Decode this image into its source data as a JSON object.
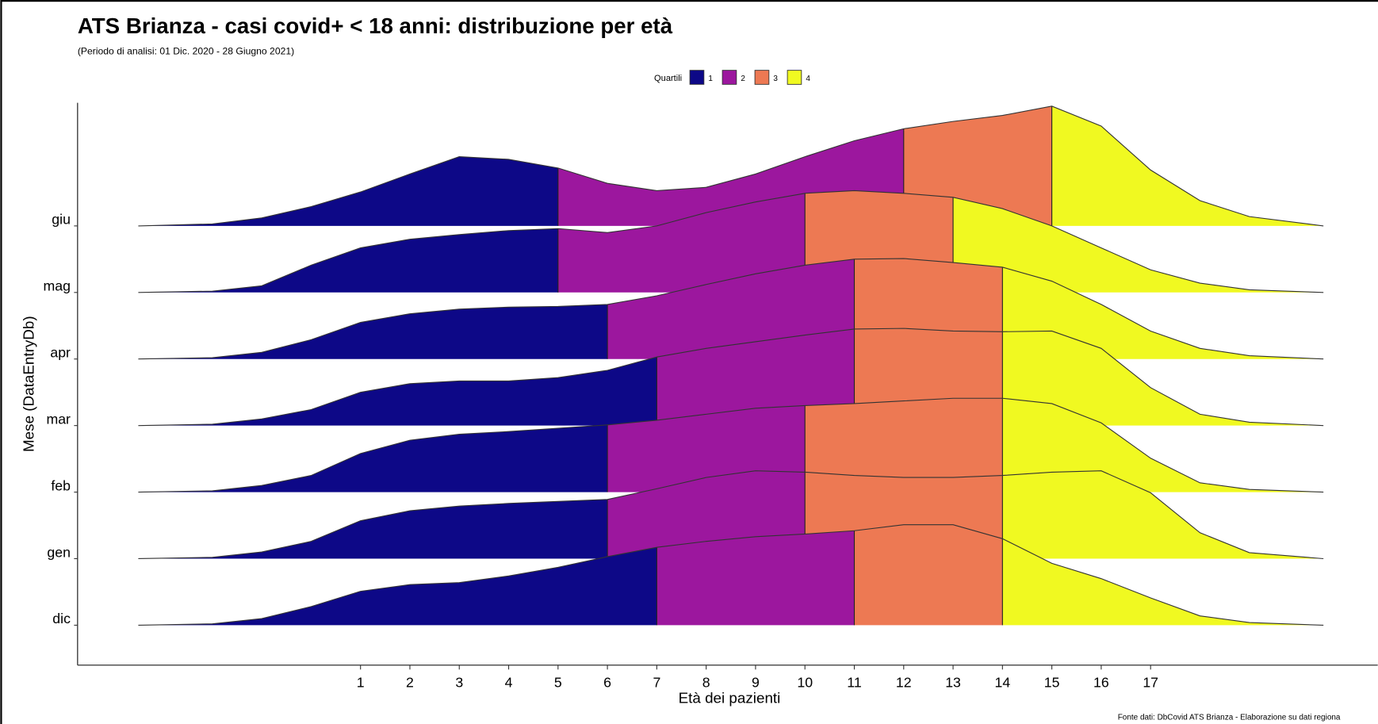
{
  "chart_data": {
    "type": "ridgeline",
    "title": "ATS Brianza - casi covid+ < 18 anni: distribuzione per età",
    "subtitle": "(Periodo di analisi: 01 Dic. 2020 - 28 Giugno 2021)",
    "x_label": "Età dei pazienti",
    "y_label": "Mese (DataEntryDb)",
    "source": "Fonte dati: DbCovid ATS Brianza - Elaborazione su dati regiona",
    "legend": {
      "title": "Quartili",
      "labels": [
        "1",
        "2",
        "3",
        "4"
      ],
      "colors": [
        "#0d0887",
        "#9c179e",
        "#ed7953",
        "#f0f921"
      ]
    },
    "xlim": [
      -4.73,
      21.6
    ],
    "xticks": [
      1,
      2,
      3,
      4,
      5,
      6,
      7,
      8,
      9,
      10,
      11,
      12,
      13,
      14,
      15,
      16,
      17
    ],
    "ylim": [
      -0.6,
      7.85
    ],
    "x": [
      -3.5,
      -2,
      -1,
      0,
      1,
      2,
      3,
      4,
      5,
      6,
      7,
      8,
      9,
      10,
      11,
      12,
      13,
      14,
      15,
      16,
      17,
      18,
      19,
      20.5
    ],
    "series": [
      {
        "name": "dic",
        "quartiles": [
          7,
          11,
          14
        ],
        "values": [
          0,
          0.02,
          0.1,
          0.28,
          0.51,
          0.61,
          0.64,
          0.74,
          0.87,
          1.03,
          1.17,
          1.26,
          1.33,
          1.37,
          1.42,
          1.51,
          1.51,
          1.3,
          0.93,
          0.7,
          0.41,
          0.14,
          0.04,
          0
        ]
      },
      {
        "name": "gen",
        "quartiles": [
          6,
          10,
          14
        ],
        "values": [
          0,
          0.02,
          0.1,
          0.26,
          0.57,
          0.72,
          0.79,
          0.83,
          0.86,
          0.89,
          1.05,
          1.22,
          1.32,
          1.3,
          1.25,
          1.22,
          1.22,
          1.25,
          1.3,
          1.32,
          0.99,
          0.39,
          0.09,
          0
        ]
      },
      {
        "name": "feb",
        "quartiles": [
          6,
          10,
          14
        ],
        "values": [
          0,
          0.02,
          0.1,
          0.25,
          0.58,
          0.78,
          0.87,
          0.91,
          0.96,
          1.01,
          1.08,
          1.17,
          1.26,
          1.3,
          1.33,
          1.37,
          1.41,
          1.41,
          1.33,
          1.04,
          0.51,
          0.14,
          0.04,
          0
        ]
      },
      {
        "name": "mar",
        "quartiles": [
          7,
          11,
          14
        ],
        "values": [
          0,
          0.02,
          0.1,
          0.24,
          0.5,
          0.63,
          0.67,
          0.67,
          0.72,
          0.83,
          1.03,
          1.16,
          1.26,
          1.36,
          1.45,
          1.46,
          1.42,
          1.41,
          1.42,
          1.16,
          0.57,
          0.17,
          0.05,
          0
        ]
      },
      {
        "name": "apr",
        "quartiles": [
          6,
          11,
          14
        ],
        "values": [
          0,
          0.02,
          0.1,
          0.29,
          0.55,
          0.68,
          0.75,
          0.78,
          0.79,
          0.82,
          0.95,
          1.12,
          1.28,
          1.41,
          1.5,
          1.51,
          1.45,
          1.38,
          1.17,
          0.82,
          0.42,
          0.16,
          0.05,
          0
        ]
      },
      {
        "name": "mag",
        "quartiles": [
          5,
          10,
          13
        ],
        "values": [
          0,
          0.02,
          0.1,
          0.41,
          0.67,
          0.8,
          0.87,
          0.93,
          0.96,
          0.9,
          1.0,
          1.2,
          1.36,
          1.49,
          1.53,
          1.49,
          1.43,
          1.26,
          1.0,
          0.67,
          0.34,
          0.14,
          0.04,
          0
        ]
      },
      {
        "name": "giu",
        "quartiles": [
          5,
          12,
          15
        ],
        "values": [
          0,
          0.03,
          0.12,
          0.29,
          0.51,
          0.78,
          1.04,
          1.0,
          0.87,
          0.64,
          0.53,
          0.58,
          0.78,
          1.04,
          1.28,
          1.46,
          1.57,
          1.66,
          1.8,
          1.5,
          0.84,
          0.38,
          0.14,
          0
        ]
      }
    ]
  }
}
